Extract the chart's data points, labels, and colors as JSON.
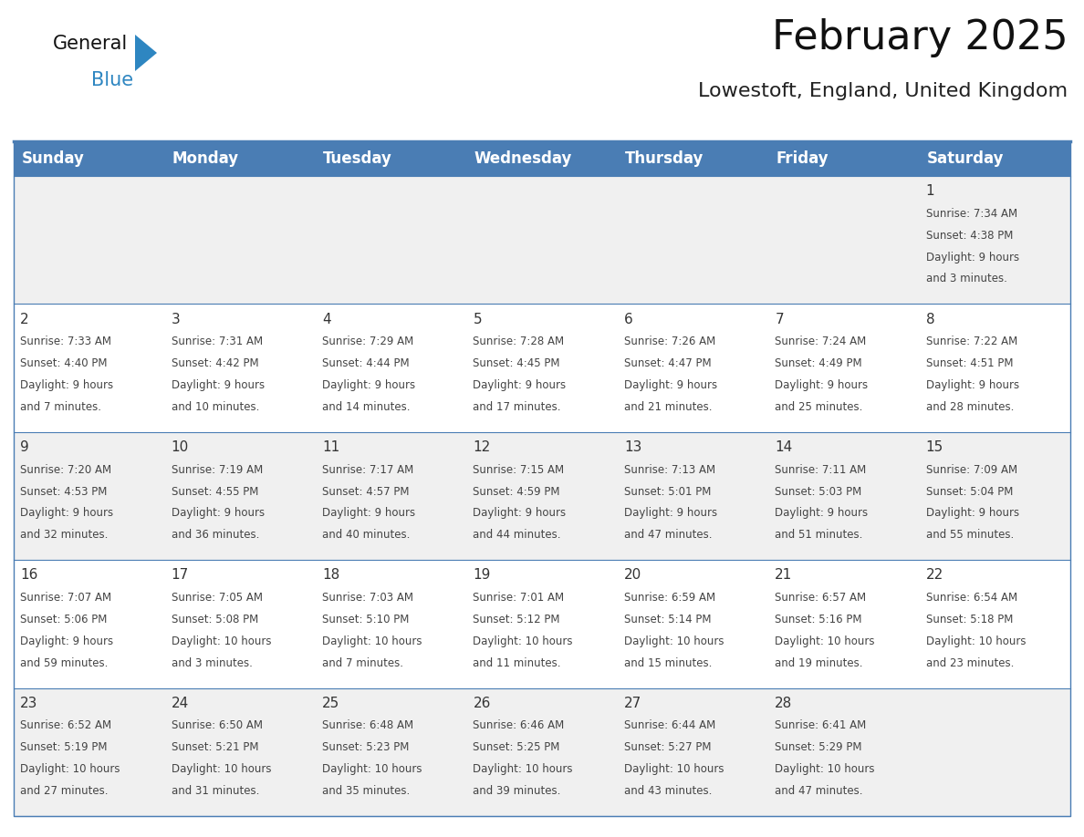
{
  "title": "February 2025",
  "subtitle": "Lowestoft, England, United Kingdom",
  "header_bg": "#4A7DB4",
  "header_text_color": "#FFFFFF",
  "border_color": "#4A7DB4",
  "row_sep_color": "#4A7DB4",
  "text_color": "#444444",
  "day_num_color": "#333333",
  "bg_odd": "#F0F0F0",
  "bg_even": "#FFFFFF",
  "day_headers": [
    "Sunday",
    "Monday",
    "Tuesday",
    "Wednesday",
    "Thursday",
    "Friday",
    "Saturday"
  ],
  "weeks": [
    [
      {
        "day": null,
        "sunrise": null,
        "sunset": null,
        "daylight": null
      },
      {
        "day": null,
        "sunrise": null,
        "sunset": null,
        "daylight": null
      },
      {
        "day": null,
        "sunrise": null,
        "sunset": null,
        "daylight": null
      },
      {
        "day": null,
        "sunrise": null,
        "sunset": null,
        "daylight": null
      },
      {
        "day": null,
        "sunrise": null,
        "sunset": null,
        "daylight": null
      },
      {
        "day": null,
        "sunrise": null,
        "sunset": null,
        "daylight": null
      },
      {
        "day": 1,
        "sunrise": "7:34 AM",
        "sunset": "4:38 PM",
        "daylight": "9 hours and 3 minutes."
      }
    ],
    [
      {
        "day": 2,
        "sunrise": "7:33 AM",
        "sunset": "4:40 PM",
        "daylight": "9 hours and 7 minutes."
      },
      {
        "day": 3,
        "sunrise": "7:31 AM",
        "sunset": "4:42 PM",
        "daylight": "9 hours and 10 minutes."
      },
      {
        "day": 4,
        "sunrise": "7:29 AM",
        "sunset": "4:44 PM",
        "daylight": "9 hours and 14 minutes."
      },
      {
        "day": 5,
        "sunrise": "7:28 AM",
        "sunset": "4:45 PM",
        "daylight": "9 hours and 17 minutes."
      },
      {
        "day": 6,
        "sunrise": "7:26 AM",
        "sunset": "4:47 PM",
        "daylight": "9 hours and 21 minutes."
      },
      {
        "day": 7,
        "sunrise": "7:24 AM",
        "sunset": "4:49 PM",
        "daylight": "9 hours and 25 minutes."
      },
      {
        "day": 8,
        "sunrise": "7:22 AM",
        "sunset": "4:51 PM",
        "daylight": "9 hours and 28 minutes."
      }
    ],
    [
      {
        "day": 9,
        "sunrise": "7:20 AM",
        "sunset": "4:53 PM",
        "daylight": "9 hours and 32 minutes."
      },
      {
        "day": 10,
        "sunrise": "7:19 AM",
        "sunset": "4:55 PM",
        "daylight": "9 hours and 36 minutes."
      },
      {
        "day": 11,
        "sunrise": "7:17 AM",
        "sunset": "4:57 PM",
        "daylight": "9 hours and 40 minutes."
      },
      {
        "day": 12,
        "sunrise": "7:15 AM",
        "sunset": "4:59 PM",
        "daylight": "9 hours and 44 minutes."
      },
      {
        "day": 13,
        "sunrise": "7:13 AM",
        "sunset": "5:01 PM",
        "daylight": "9 hours and 47 minutes."
      },
      {
        "day": 14,
        "sunrise": "7:11 AM",
        "sunset": "5:03 PM",
        "daylight": "9 hours and 51 minutes."
      },
      {
        "day": 15,
        "sunrise": "7:09 AM",
        "sunset": "5:04 PM",
        "daylight": "9 hours and 55 minutes."
      }
    ],
    [
      {
        "day": 16,
        "sunrise": "7:07 AM",
        "sunset": "5:06 PM",
        "daylight": "9 hours and 59 minutes."
      },
      {
        "day": 17,
        "sunrise": "7:05 AM",
        "sunset": "5:08 PM",
        "daylight": "10 hours and 3 minutes."
      },
      {
        "day": 18,
        "sunrise": "7:03 AM",
        "sunset": "5:10 PM",
        "daylight": "10 hours and 7 minutes."
      },
      {
        "day": 19,
        "sunrise": "7:01 AM",
        "sunset": "5:12 PM",
        "daylight": "10 hours and 11 minutes."
      },
      {
        "day": 20,
        "sunrise": "6:59 AM",
        "sunset": "5:14 PM",
        "daylight": "10 hours and 15 minutes."
      },
      {
        "day": 21,
        "sunrise": "6:57 AM",
        "sunset": "5:16 PM",
        "daylight": "10 hours and 19 minutes."
      },
      {
        "day": 22,
        "sunrise": "6:54 AM",
        "sunset": "5:18 PM",
        "daylight": "10 hours and 23 minutes."
      }
    ],
    [
      {
        "day": 23,
        "sunrise": "6:52 AM",
        "sunset": "5:19 PM",
        "daylight": "10 hours and 27 minutes."
      },
      {
        "day": 24,
        "sunrise": "6:50 AM",
        "sunset": "5:21 PM",
        "daylight": "10 hours and 31 minutes."
      },
      {
        "day": 25,
        "sunrise": "6:48 AM",
        "sunset": "5:23 PM",
        "daylight": "10 hours and 35 minutes."
      },
      {
        "day": 26,
        "sunrise": "6:46 AM",
        "sunset": "5:25 PM",
        "daylight": "10 hours and 39 minutes."
      },
      {
        "day": 27,
        "sunrise": "6:44 AM",
        "sunset": "5:27 PM",
        "daylight": "10 hours and 43 minutes."
      },
      {
        "day": 28,
        "sunrise": "6:41 AM",
        "sunset": "5:29 PM",
        "daylight": "10 hours and 47 minutes."
      },
      {
        "day": null,
        "sunrise": null,
        "sunset": null,
        "daylight": null
      }
    ]
  ],
  "title_fontsize": 32,
  "subtitle_fontsize": 16,
  "header_fontsize": 12,
  "day_num_fontsize": 11,
  "cell_text_fontsize": 8.5,
  "logo_general_fontsize": 15,
  "logo_blue_fontsize": 15
}
